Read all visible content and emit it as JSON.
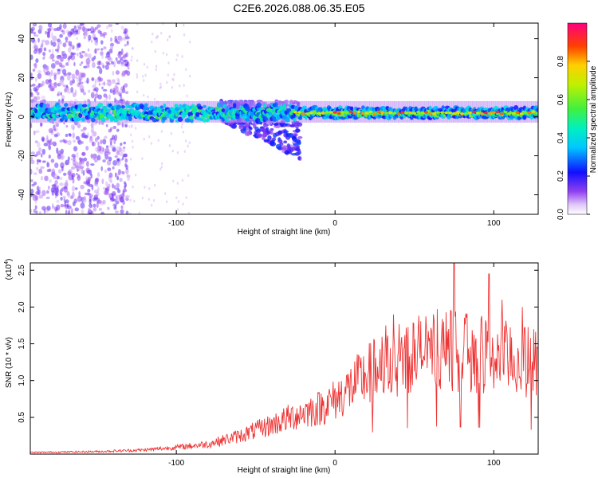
{
  "title": "C2E6.2026.088.06.35.E05",
  "chart_data": [
    {
      "type": "heatmap",
      "name": "spectrogram",
      "xlabel": "Height of straight line (km)",
      "ylabel": "Frequency (Hz)",
      "xlim": [
        -192,
        128
      ],
      "ylim": [
        -50,
        48
      ],
      "xticks": [
        -100,
        0,
        100
      ],
      "yticks": [
        -40,
        -20,
        0,
        20,
        40
      ],
      "xtick_labels": [
        "-100",
        "0",
        "100"
      ],
      "ytick_labels": [
        "-40",
        "-20",
        "0",
        "20",
        "40"
      ],
      "colorbar": {
        "label": "Normalized spectral amplitude",
        "range": [
          0,
          1
        ],
        "ticks": [
          0.0,
          0.2,
          0.4,
          0.6,
          0.8
        ],
        "tick_labels": [
          "0.0",
          "0.2",
          "0.4",
          "0.6",
          "0.8"
        ]
      },
      "band": {
        "center_hz": 2,
        "half_width_hz": 3,
        "notes": "strong narrow band near 2 Hz; disturbance toward negative frequencies around -60 to -25 km"
      }
    },
    {
      "type": "line",
      "name": "snr",
      "xlabel": "Height of straight line (km)",
      "ylabel": "SNR (10 * v/v)",
      "scale_label": "(x10",
      "scale_exponent": "4",
      "color": "#ee3333",
      "xlim": [
        -192,
        128
      ],
      "ylim": [
        0,
        2.6
      ],
      "xticks": [
        -100,
        0,
        100
      ],
      "yticks": [
        0.5,
        1.0,
        1.5,
        2.0,
        2.5
      ],
      "xtick_labels": [
        "-100",
        "0",
        "100"
      ],
      "ytick_labels": [
        "0.5",
        "1.0",
        "1.5",
        "2.0",
        "2.5"
      ],
      "trend_x": [
        -192,
        -150,
        -120,
        -100,
        -80,
        -60,
        -40,
        -20,
        -10,
        0,
        10,
        20,
        30,
        40,
        50,
        60,
        70,
        80,
        90,
        100,
        110,
        120,
        128
      ],
      "trend_y": [
        0.02,
        0.03,
        0.05,
        0.08,
        0.12,
        0.22,
        0.35,
        0.5,
        0.55,
        0.65,
        0.8,
        0.95,
        1.05,
        1.15,
        1.2,
        1.25,
        1.25,
        1.22,
        1.2,
        1.15,
        1.15,
        1.1,
        1.1
      ],
      "peaks_x": [
        75,
        97,
        32,
        37,
        105,
        118
      ],
      "peaks_y": [
        2.6,
        2.45,
        1.75,
        1.9,
        2.1,
        2.0
      ]
    }
  ]
}
